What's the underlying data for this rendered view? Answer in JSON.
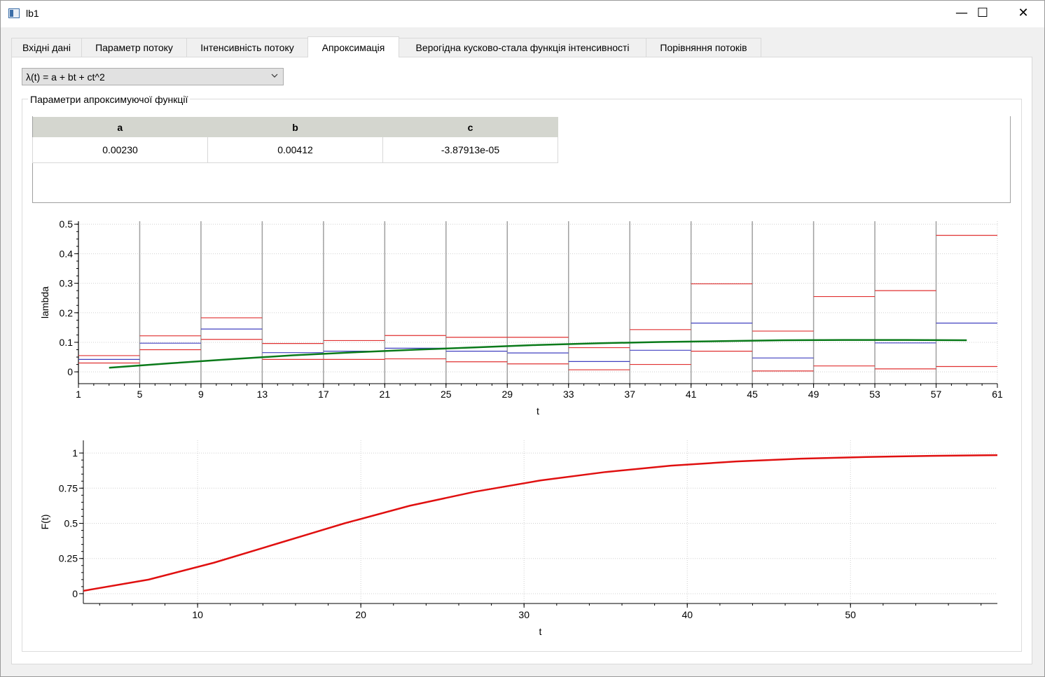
{
  "window": {
    "title": "lb1",
    "minimize_glyph": "—",
    "maximize_glyph": "☐",
    "close_glyph": "✕"
  },
  "tabs": [
    {
      "label": "Вхідні дані",
      "active": false
    },
    {
      "label": "Параметр потоку",
      "active": false
    },
    {
      "label": "Інтенсивність потоку",
      "active": false
    },
    {
      "label": "Апроксимація",
      "active": true
    },
    {
      "label": "Верогідна кусково-стала функція інтенсивності",
      "active": false
    },
    {
      "label": "Порівняння потоків",
      "active": false
    }
  ],
  "function_select": {
    "selected": "λ(t) = a + bt + ct^2"
  },
  "params_group": {
    "title": "Параметри апроксимуючої функції",
    "headers": [
      "a",
      "b",
      "c"
    ],
    "values": [
      "0.00230",
      "0.00412",
      "-3.87913e-05"
    ]
  },
  "chart_data": [
    {
      "type": "line",
      "xlabel": "t",
      "ylabel": "lambda",
      "xlim": [
        1,
        61
      ],
      "ylim": [
        -0.04,
        0.51
      ],
      "x_ticks": [
        1,
        5,
        9,
        13,
        17,
        21,
        25,
        29,
        33,
        37,
        41,
        45,
        49,
        53,
        57,
        61
      ],
      "y_ticks": [
        0,
        0.1,
        0.2,
        0.3,
        0.4,
        0.5
      ],
      "y_tick_labels": [
        "0",
        "0.1",
        "0.2",
        "0.3",
        "0.4",
        "0.5"
      ],
      "grid": true,
      "colors": {
        "estimate": "#4040c0",
        "bounds": "#e03030",
        "approximation": "#0a7a1a",
        "interval_lines": "#a0a0a0"
      },
      "intervals": [
        {
          "from": 1,
          "to": 5,
          "lower": 0.03,
          "estimate": 0.042,
          "upper": 0.055
        },
        {
          "from": 5,
          "to": 9,
          "lower": 0.075,
          "estimate": 0.097,
          "upper": 0.122
        },
        {
          "from": 9,
          "to": 13,
          "lower": 0.11,
          "estimate": 0.145,
          "upper": 0.183
        },
        {
          "from": 13,
          "to": 17,
          "lower": 0.042,
          "estimate": 0.065,
          "upper": 0.096
        },
        {
          "from": 17,
          "to": 21,
          "lower": 0.042,
          "estimate": 0.07,
          "upper": 0.106
        },
        {
          "from": 21,
          "to": 25,
          "lower": 0.044,
          "estimate": 0.08,
          "upper": 0.123
        },
        {
          "from": 25,
          "to": 29,
          "lower": 0.034,
          "estimate": 0.07,
          "upper": 0.117
        },
        {
          "from": 29,
          "to": 33,
          "lower": 0.027,
          "estimate": 0.064,
          "upper": 0.117
        },
        {
          "from": 33,
          "to": 37,
          "lower": 0.007,
          "estimate": 0.035,
          "upper": 0.082
        },
        {
          "from": 37,
          "to": 41,
          "lower": 0.025,
          "estimate": 0.073,
          "upper": 0.143
        },
        {
          "from": 41,
          "to": 45,
          "lower": 0.07,
          "estimate": 0.165,
          "upper": 0.298
        },
        {
          "from": 45,
          "to": 49,
          "lower": 0.003,
          "estimate": 0.047,
          "upper": 0.138
        },
        {
          "from": 49,
          "to": 53,
          "lower": 0.02,
          "estimate": 0.108,
          "upper": 0.255
        },
        {
          "from": 53,
          "to": 57,
          "lower": 0.01,
          "estimate": 0.098,
          "upper": 0.275
        },
        {
          "from": 57,
          "to": 61,
          "lower": 0.018,
          "estimate": 0.165,
          "upper": 0.462
        }
      ],
      "approximation": {
        "x": [
          3,
          7,
          11,
          15,
          19,
          23,
          27,
          31,
          35,
          39,
          43,
          47,
          51,
          55,
          59
        ],
        "y": [
          0.014,
          0.029,
          0.043,
          0.056,
          0.066,
          0.075,
          0.083,
          0.091,
          0.097,
          0.101,
          0.104,
          0.107,
          0.108,
          0.108,
          0.107
        ]
      }
    },
    {
      "type": "line",
      "xlabel": "t",
      "ylabel": "F(t)",
      "xlim": [
        3,
        59
      ],
      "ylim": [
        -0.07,
        1.09
      ],
      "x_ticks": [
        10,
        20,
        30,
        40,
        50
      ],
      "y_ticks": [
        0,
        0.25,
        0.5,
        0.75,
        1
      ],
      "y_tick_labels": [
        "0",
        "0.25",
        "0.5",
        "0.75",
        "1"
      ],
      "grid": true,
      "colors": {
        "line": "#e01010"
      },
      "x": [
        3,
        7,
        11,
        15,
        19,
        23,
        27,
        31,
        35,
        39,
        43,
        47,
        51,
        55,
        59
      ],
      "y": [
        0.02,
        0.1,
        0.22,
        0.36,
        0.5,
        0.625,
        0.725,
        0.805,
        0.865,
        0.91,
        0.94,
        0.96,
        0.972,
        0.98,
        0.985
      ]
    }
  ]
}
